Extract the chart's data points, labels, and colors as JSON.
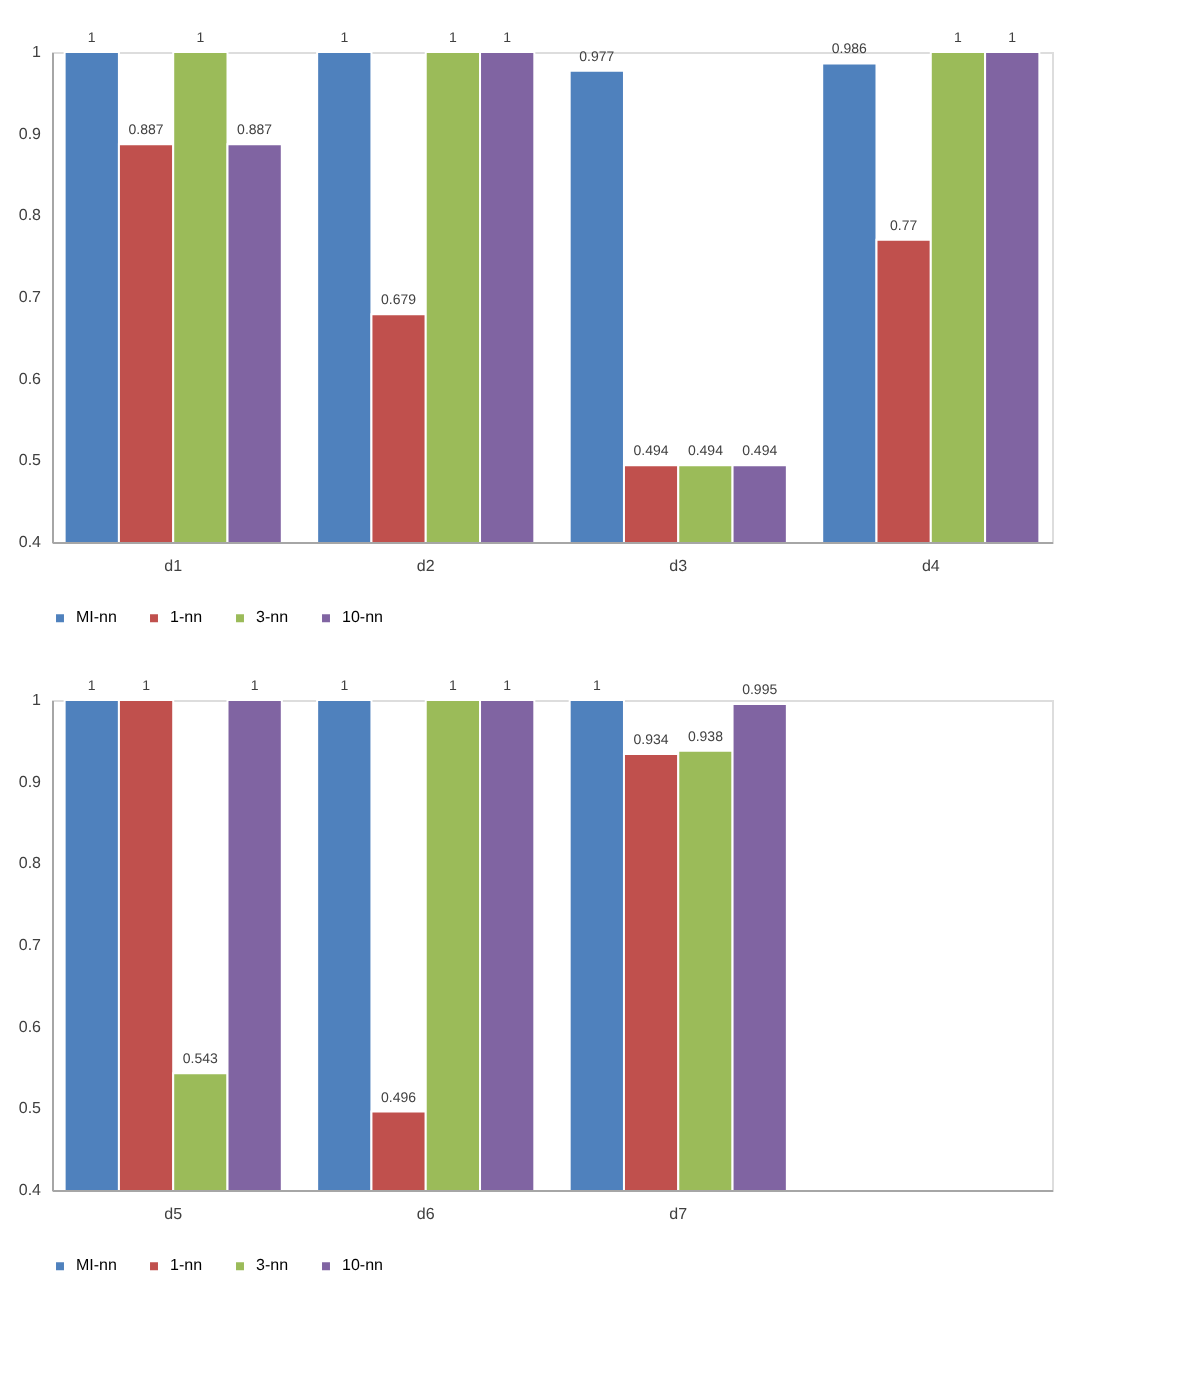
{
  "chart_data": [
    {
      "type": "bar",
      "categories": [
        "d1",
        "d2",
        "d3",
        "d4"
      ],
      "ylim": [
        0.4,
        1
      ],
      "yticks": [
        0.4,
        0.5,
        0.6,
        0.7,
        0.8,
        0.9,
        1
      ],
      "data_labels": true,
      "legend": "bottom",
      "series": [
        {
          "name": "MI-nn",
          "color": "#4f81bd",
          "values": [
            1,
            1,
            0.977,
            0.986
          ]
        },
        {
          "name": "1-nn",
          "color": "#c0504d",
          "values": [
            0.887,
            0.679,
            0.494,
            0.77
          ]
        },
        {
          "name": "3-nn",
          "color": "#9bbb59",
          "values": [
            1,
            1,
            0.494,
            1
          ]
        },
        {
          "name": "10-nn",
          "color": "#8064a2",
          "values": [
            0.887,
            1,
            0.494,
            1
          ]
        }
      ]
    },
    {
      "type": "bar",
      "categories": [
        "d5",
        "d6",
        "d7",
        null
      ],
      "ylim": [
        0.4,
        1
      ],
      "yticks": [
        0.4,
        0.5,
        0.6,
        0.7,
        0.8,
        0.9,
        1
      ],
      "data_labels": true,
      "legend": "bottom",
      "series": [
        {
          "name": "MI-nn",
          "color": "#4f81bd",
          "values": [
            1,
            1,
            1,
            null
          ]
        },
        {
          "name": "1-nn",
          "color": "#c0504d",
          "values": [
            1,
            0.496,
            0.934,
            null
          ]
        },
        {
          "name": "3-nn",
          "color": "#9bbb59",
          "values": [
            0.543,
            1,
            0.938,
            null
          ]
        },
        {
          "name": "10-nn",
          "color": "#8064a2",
          "values": [
            1,
            1,
            0.995,
            null
          ]
        }
      ]
    }
  ]
}
